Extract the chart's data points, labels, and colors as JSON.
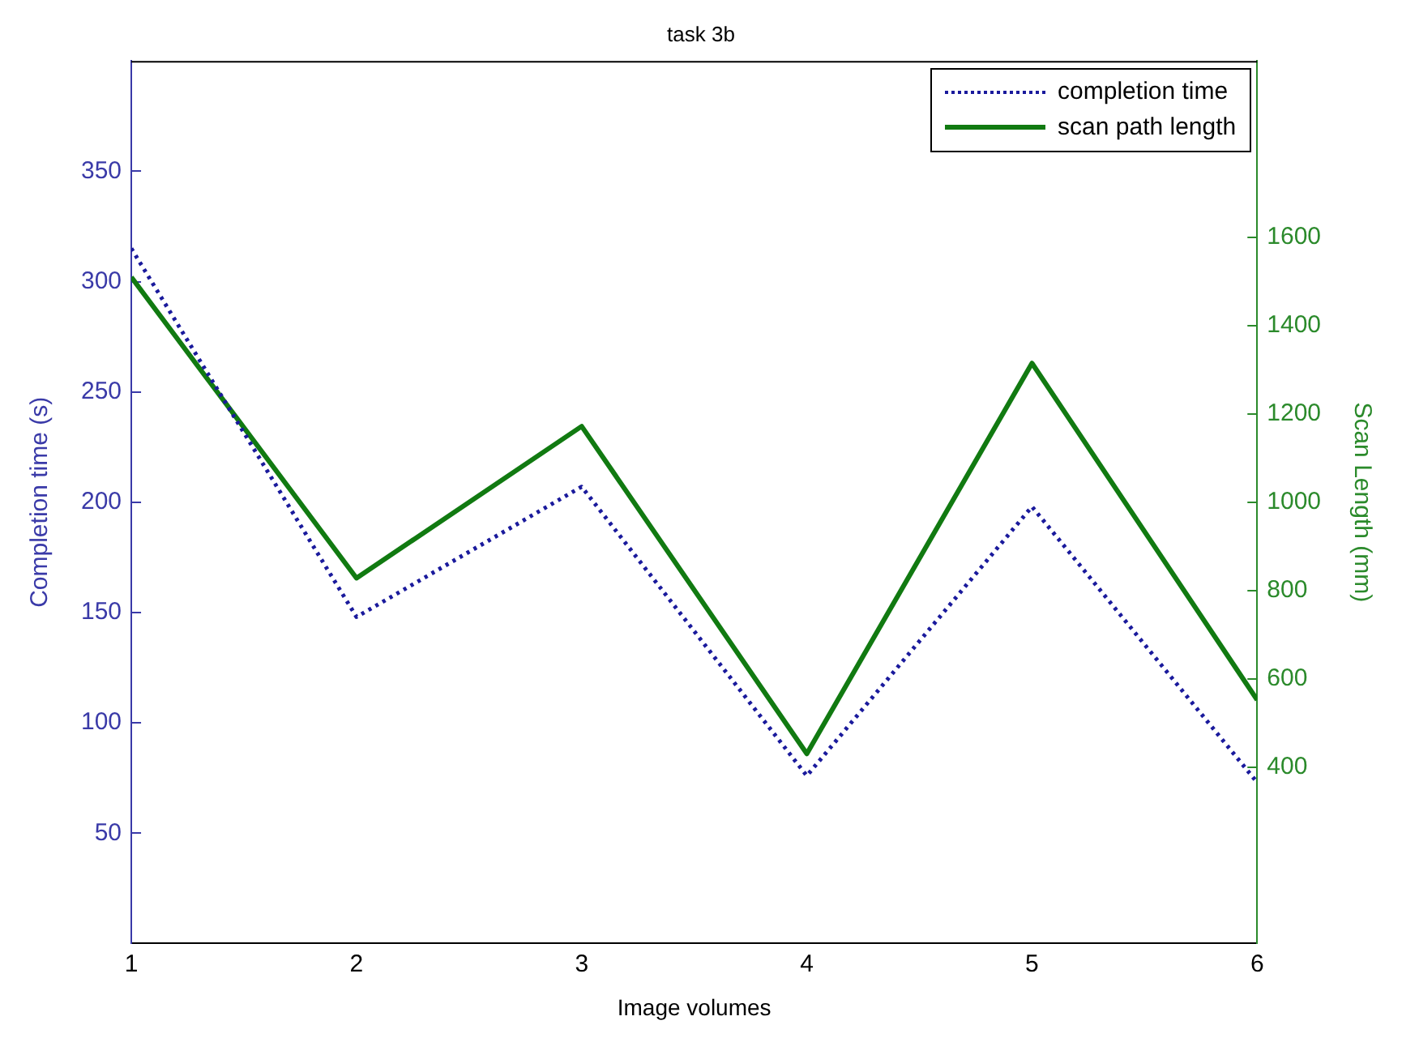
{
  "chart_data": {
    "type": "line",
    "title": "task 3b",
    "xlabel": "Image volumes",
    "ylabel": "Completion time (s)",
    "y2label": "Scan Length (mm)",
    "x": [
      1,
      2,
      3,
      4,
      5,
      6
    ],
    "series": [
      {
        "name": "completion time",
        "color": "#1a1a9c",
        "line_style": "dotted",
        "values": [
          315,
          148,
          207,
          76,
          198,
          73
        ]
      },
      {
        "name": "scan path length",
        "color": "#117a11",
        "line_style": "solid",
        "axis": "y2",
        "values": [
          1510,
          828,
          1172,
          430,
          1315,
          552
        ]
      }
    ],
    "xlim": [
      1,
      6
    ],
    "xticks": [
      1,
      2,
      3,
      4,
      5,
      6
    ],
    "ylim": [
      0,
      400
    ],
    "yticks": [
      50,
      100,
      150,
      200,
      250,
      300,
      350
    ],
    "y2lim": [
      0,
      2000
    ],
    "y2ticks": [
      400,
      600,
      800,
      1000,
      1200,
      1400,
      1600
    ],
    "grid": false,
    "legend": "top right",
    "marker": "none"
  }
}
